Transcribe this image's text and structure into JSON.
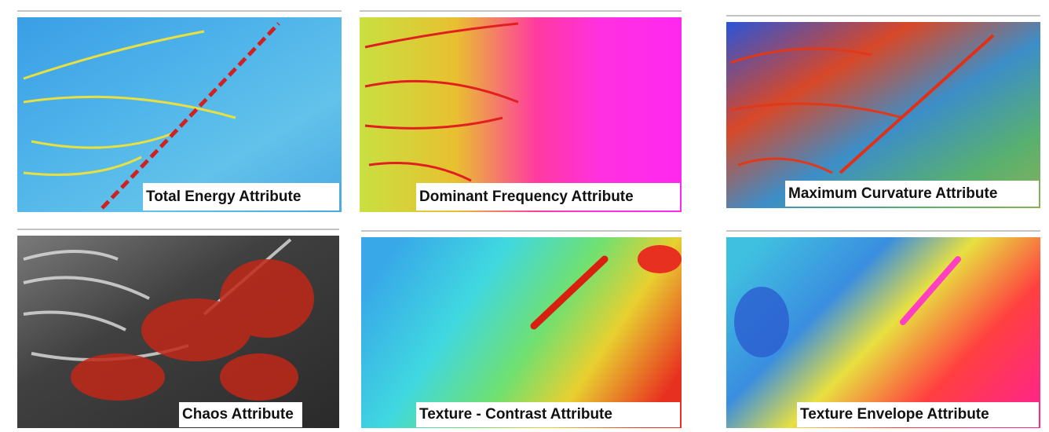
{
  "panels": [
    {
      "label": "Total Energy Attribute"
    },
    {
      "label": "Dominant Frequency Attribute"
    },
    {
      "label": "Maximum Curvature Attribute"
    },
    {
      "label": "Chaos Attribute"
    },
    {
      "label": "Texture - Contrast Attribute"
    },
    {
      "label": "Texture Envelope Attribute"
    }
  ]
}
